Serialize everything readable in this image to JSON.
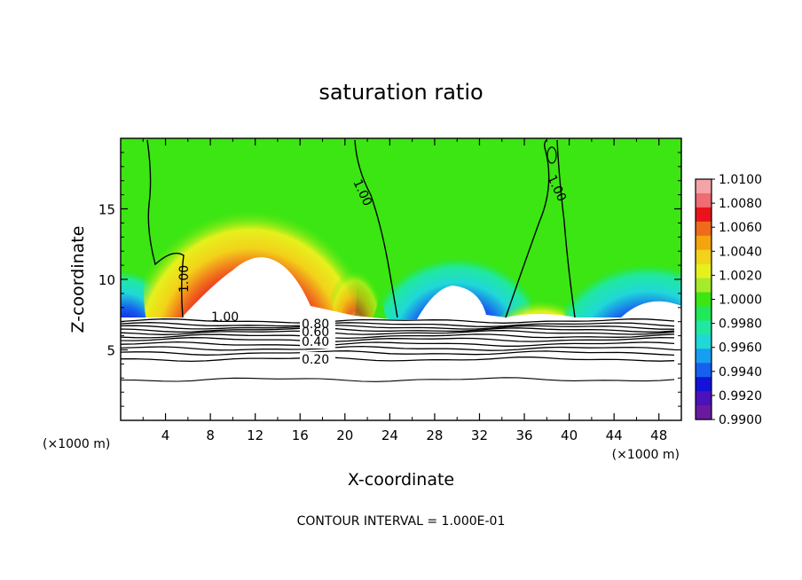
{
  "chart_data": {
    "type": "heatmap",
    "title": "saturation ratio",
    "xlabel": "X-coordinate",
    "ylabel": "Z-coordinate",
    "x_unit": "(×1000 m)",
    "y_unit": "(×1000 m)",
    "xlim": [
      0,
      50
    ],
    "ylim": [
      0,
      20
    ],
    "x_ticks": [
      4,
      8,
      12,
      16,
      20,
      24,
      28,
      32,
      36,
      40,
      44,
      48
    ],
    "y_ticks": [
      5,
      10,
      15
    ],
    "colorbar": {
      "min": 0.99,
      "max": 1.01,
      "ticks": [
        "1.0100",
        "1.0080",
        "1.0060",
        "1.0040",
        "1.0020",
        "1.0000",
        "0.9980",
        "0.9960",
        "0.9940",
        "0.9920",
        "0.9900"
      ],
      "colors": [
        "#f4a3a6",
        "#ee6c72",
        "#e8141a",
        "#f06a1c",
        "#f5a30f",
        "#f2d21a",
        "#e6f01c",
        "#a6ea2a",
        "#3be612",
        "#20e85a",
        "#20e8a0",
        "#20d8d8",
        "#189ef0",
        "#1660f0",
        "#1212d8",
        "#4a12b8",
        "#6a1aa0"
      ]
    },
    "contour_labels": [
      "1.00",
      "1.00",
      "1.00",
      "1.00",
      "0.80",
      "0.60",
      "0.40",
      "0.20"
    ],
    "annotation": "CONTOUR INTERVAL = 1.000E-01",
    "grid": false
  }
}
